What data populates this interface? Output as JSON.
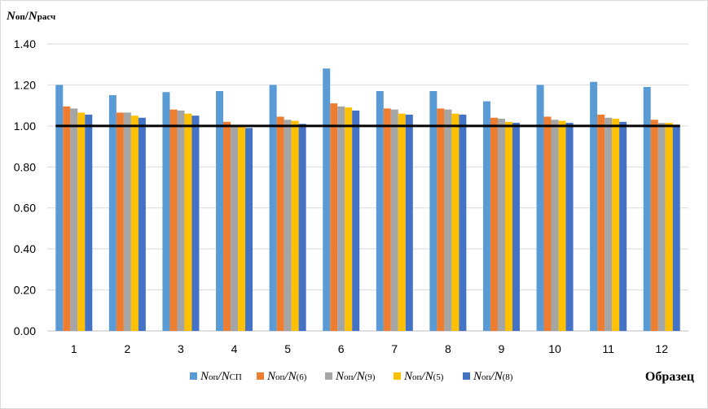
{
  "chart_data": {
    "type": "bar",
    "title": "",
    "ylabel": "N_оп/N_расч",
    "ylabel_parts": {
      "n1": "N",
      "s1": "оп",
      "slash": "/",
      "n2": "N",
      "s2": "расч"
    },
    "xlabel": "Образец",
    "categories": [
      "1",
      "2",
      "3",
      "4",
      "5",
      "6",
      "7",
      "8",
      "9",
      "10",
      "11",
      "12"
    ],
    "ylim": [
      0,
      1.4
    ],
    "yticks": [
      "0.00",
      "0.20",
      "0.40",
      "0.60",
      "0.80",
      "1.00",
      "1.20",
      "1.40"
    ],
    "grid": true,
    "legend_position": "bottom",
    "reference_line": {
      "value": 1.0,
      "color": "#000000"
    },
    "series": [
      {
        "name": "N_оп/N_СП",
        "legend": {
          "n1": "N",
          "s1": "оп",
          "slash": "/",
          "n2": "N",
          "s2": "СП"
        },
        "color": "#5B9BD5",
        "values": [
          1.2,
          1.15,
          1.165,
          1.17,
          1.2,
          1.28,
          1.17,
          1.17,
          1.12,
          1.2,
          1.215,
          1.19
        ]
      },
      {
        "name": "N_оп/N_(6)",
        "legend": {
          "n1": "N",
          "s1": "оп",
          "slash": "/",
          "n2": "N",
          "s2": "(6)"
        },
        "color": "#ED7D31",
        "values": [
          1.095,
          1.065,
          1.08,
          1.02,
          1.045,
          1.11,
          1.085,
          1.085,
          1.04,
          1.045,
          1.055,
          1.03
        ]
      },
      {
        "name": "N_оп/N_(9)",
        "legend": {
          "n1": "N",
          "s1": "оп",
          "slash": "/",
          "n2": "N",
          "s2": "(9)"
        },
        "color": "#A5A5A5",
        "values": [
          1.085,
          1.065,
          1.075,
          1.005,
          1.03,
          1.095,
          1.08,
          1.08,
          1.035,
          1.03,
          1.04,
          1.015
        ]
      },
      {
        "name": "N_оп/N_(5)",
        "legend": {
          "n1": "N",
          "s1": "оп",
          "slash": "/",
          "n2": "N",
          "s2": "(5)"
        },
        "color": "#FFC000",
        "values": [
          1.065,
          1.05,
          1.06,
          1.0,
          1.025,
          1.09,
          1.06,
          1.06,
          1.02,
          1.025,
          1.035,
          1.015
        ]
      },
      {
        "name": "N_оп/N_(8)",
        "legend": {
          "n1": "N",
          "s1": "оп",
          "slash": "/",
          "n2": "N",
          "s2": "(8)"
        },
        "color": "#4472C4",
        "values": [
          1.055,
          1.04,
          1.05,
          0.99,
          1.01,
          1.075,
          1.055,
          1.055,
          1.015,
          1.015,
          1.02,
          1.0
        ]
      }
    ]
  }
}
